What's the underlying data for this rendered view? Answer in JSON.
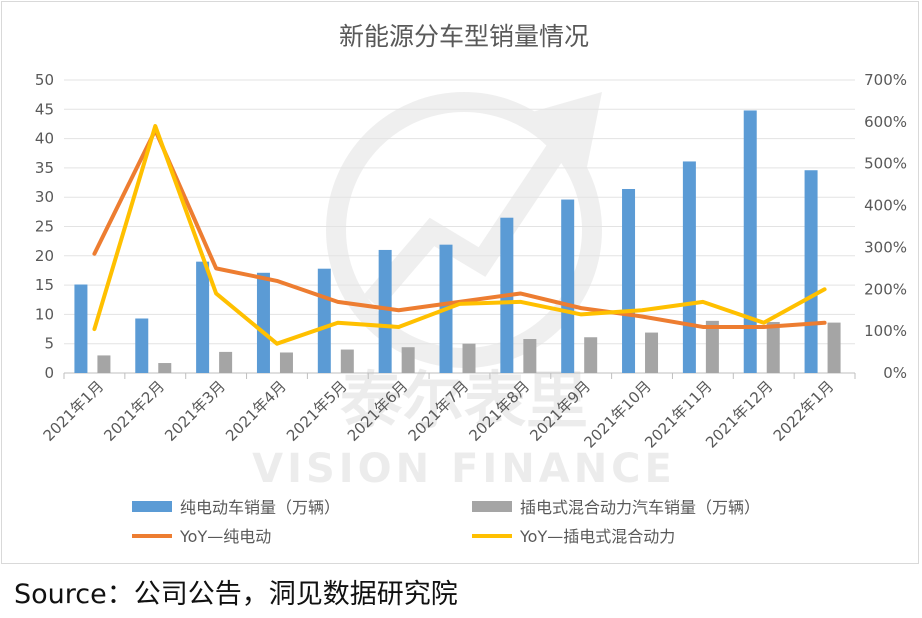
{
  "chart_data": {
    "type": "bar",
    "title": "新能源分车型销量情况",
    "categories": [
      "2021年1月",
      "2021年2月",
      "2021年3月",
      "2021年4月",
      "2021年5月",
      "2021年6月",
      "2021年7月",
      "2021年8月",
      "2021年9月",
      "2021年10月",
      "2021年11月",
      "2021年12月",
      "2022年1月"
    ],
    "y_left_ticks": [
      "0",
      "5",
      "10",
      "15",
      "20",
      "25",
      "30",
      "35",
      "40",
      "45",
      "50"
    ],
    "y_right_ticks": [
      "0%",
      "100%",
      "200%",
      "300%",
      "400%",
      "500%",
      "600%",
      "700%"
    ],
    "ylim_left": [
      0,
      50
    ],
    "ylim_right": [
      0,
      700
    ],
    "grid": true,
    "legend_position": "bottom",
    "series": [
      {
        "name": "纯电动车销量（万辆）",
        "kind": "bar",
        "axis": "left",
        "color": "#5b9bd5",
        "values": [
          15.1,
          9.3,
          19.0,
          17.1,
          17.8,
          21.0,
          21.9,
          26.5,
          29.6,
          31.4,
          36.1,
          44.8,
          34.6
        ]
      },
      {
        "name": "插电式混合动力汽车销量（万辆）",
        "kind": "bar",
        "axis": "left",
        "color": "#a5a5a5",
        "values": [
          3.0,
          1.7,
          3.6,
          3.5,
          4.0,
          4.4,
          5.0,
          5.8,
          6.1,
          6.9,
          8.9,
          8.7,
          8.6
        ]
      },
      {
        "name": "YoY—纯电动",
        "kind": "line",
        "axis": "right",
        "color": "#ed7d31",
        "values": [
          285,
          580,
          250,
          220,
          170,
          150,
          170,
          190,
          155,
          135,
          110,
          110,
          120
        ]
      },
      {
        "name": "YoY—插电式混合动力",
        "kind": "line",
        "axis": "right",
        "color": "#ffc000",
        "values": [
          105,
          590,
          190,
          70,
          120,
          110,
          165,
          170,
          140,
          150,
          170,
          120,
          200
        ]
      }
    ]
  },
  "watermark": {
    "line1": "泰尔表里",
    "line2": "VISION FINANCE"
  },
  "source": "Source：公司公告，洞见数据研究院"
}
